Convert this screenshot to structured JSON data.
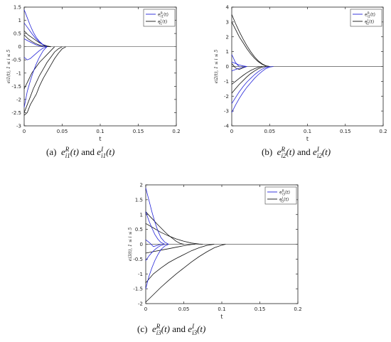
{
  "figure": {
    "captions": [
      {
        "prefix": "(a)",
        "series1": {
          "base": "e",
          "sup": "R",
          "sub": "i1",
          "arg": "(t)"
        },
        "joiner": "and",
        "series2": {
          "base": "e",
          "sup": "I",
          "sub": "i1",
          "arg": "(t)"
        }
      },
      {
        "prefix": "(b)",
        "series1": {
          "base": "e",
          "sup": "R",
          "sub": "i2",
          "arg": "(t)"
        },
        "joiner": "and",
        "series2": {
          "base": "e",
          "sup": "I",
          "sub": "i2",
          "arg": "(t)"
        }
      },
      {
        "prefix": "(c)",
        "series1": {
          "base": "e",
          "sup": "R",
          "sub": "i3",
          "arg": "(t)"
        },
        "joiner": "and",
        "series2": {
          "base": "e",
          "sup": "I",
          "sub": "i3",
          "arg": "(t)"
        }
      }
    ]
  },
  "colors": {
    "real": "#2323d8",
    "imag": "#111111",
    "axis": "#222222",
    "zero": "#555555"
  },
  "chart_data": [
    {
      "type": "line",
      "xlabel": "t",
      "ylabel": "e_{i1}(t), 1 ≤ i ≤ 5",
      "xlim": [
        0,
        0.2
      ],
      "ylim": [
        -3,
        1.5
      ],
      "xticks": [
        "0",
        "0.05",
        "0.1",
        "0.15",
        "0.2"
      ],
      "yticks": [
        "-3",
        "-2.5",
        "-2",
        "-1.5",
        "-1",
        "-0.5",
        "0",
        "0.5",
        "1",
        "1.5"
      ],
      "legend": [
        "e^R_{i1}(t)",
        "e^I_{i1}(t)"
      ],
      "legend_position": "top-right",
      "series": [
        {
          "group": "real",
          "x": [
            0,
            0.004,
            0.008,
            0.012,
            0.016,
            0.02,
            0.025,
            0.03
          ],
          "y": [
            1.4,
            1.1,
            0.8,
            0.55,
            0.35,
            0.2,
            0.07,
            0
          ]
        },
        {
          "group": "real",
          "x": [
            0,
            0.005,
            0.01,
            0.015,
            0.02,
            0.025,
            0.03
          ],
          "y": [
            0.9,
            0.7,
            0.5,
            0.32,
            0.18,
            0.06,
            0
          ]
        },
        {
          "group": "real",
          "x": [
            0,
            0.005,
            0.01,
            0.015,
            0.02,
            0.025
          ],
          "y": [
            0.3,
            0.22,
            0.15,
            0.08,
            0.03,
            0
          ]
        },
        {
          "group": "real",
          "x": [
            0,
            0.004,
            0.008,
            0.012,
            0.016,
            0.02,
            0.025,
            0.03
          ],
          "y": [
            -0.4,
            -0.5,
            -0.45,
            -0.35,
            -0.25,
            -0.15,
            -0.05,
            0
          ]
        },
        {
          "group": "real",
          "x": [
            0,
            0.004,
            0.008,
            0.012,
            0.016,
            0.02,
            0.025,
            0.03
          ],
          "y": [
            -2.3,
            -1.7,
            -1.3,
            -0.95,
            -0.65,
            -0.4,
            -0.15,
            0
          ]
        },
        {
          "group": "imag",
          "x": [
            0,
            0.005,
            0.01,
            0.015,
            0.02,
            0.025,
            0.03,
            0.035
          ],
          "y": [
            0.6,
            0.45,
            0.35,
            0.25,
            0.15,
            0.08,
            0.03,
            0
          ]
        },
        {
          "group": "imag",
          "x": [
            0,
            0.005,
            0.01,
            0.015,
            0.02,
            0.025,
            0.03,
            0.035
          ],
          "y": [
            0.45,
            0.3,
            0.2,
            0.12,
            0.06,
            0.03,
            0.01,
            0
          ]
        },
        {
          "group": "imag",
          "x": [
            0,
            0.005,
            0.01,
            0.015,
            0.02,
            0.025,
            0.03,
            0.035,
            0.04
          ],
          "y": [
            -1.6,
            -1.3,
            -1.0,
            -0.8,
            -0.6,
            -0.45,
            -0.3,
            -0.15,
            0
          ]
        },
        {
          "group": "imag",
          "x": [
            0,
            0.004,
            0.008,
            0.012,
            0.016,
            0.02,
            0.025,
            0.03,
            0.035,
            0.04,
            0.045,
            0.05
          ],
          "y": [
            -2.5,
            -2.2,
            -1.9,
            -1.6,
            -1.35,
            -1.1,
            -0.85,
            -0.6,
            -0.4,
            -0.2,
            -0.08,
            0
          ]
        },
        {
          "group": "imag",
          "x": [
            0,
            0.004,
            0.008,
            0.012,
            0.016,
            0.02,
            0.025,
            0.03,
            0.035,
            0.04,
            0.045,
            0.05,
            0.055
          ],
          "y": [
            -2.6,
            -2.5,
            -2.2,
            -2.0,
            -1.8,
            -1.5,
            -1.2,
            -0.95,
            -0.7,
            -0.45,
            -0.25,
            -0.08,
            0
          ]
        }
      ]
    },
    {
      "type": "line",
      "xlabel": "t",
      "ylabel": "e_{i2}(t), 1 ≤ i ≤ 5",
      "xlim": [
        0,
        0.2
      ],
      "ylim": [
        -4,
        4
      ],
      "xticks": [
        "0",
        "0.05",
        "0.1",
        "0.15",
        "0.2"
      ],
      "yticks": [
        "-4",
        "-3",
        "-2",
        "-1",
        "0",
        "1",
        "2",
        "3",
        "4"
      ],
      "legend": [
        "e^R_{i2}(t)",
        "e^I_{i2}(t)"
      ],
      "legend_position": "top-right",
      "series": [
        {
          "group": "real",
          "x": [
            0,
            0.002,
            0.004,
            0.006,
            0.008,
            0.01
          ],
          "y": [
            0.8,
            0.6,
            0.35,
            0.2,
            0.08,
            0
          ]
        },
        {
          "group": "real",
          "x": [
            0,
            0.005,
            0.01,
            0.015,
            0.02
          ],
          "y": [
            0.3,
            0.2,
            0.1,
            0.04,
            0
          ]
        },
        {
          "group": "real",
          "x": [
            0,
            0.005,
            0.01,
            0.015,
            0.02
          ],
          "y": [
            -0.3,
            -0.2,
            -0.12,
            -0.05,
            0
          ]
        },
        {
          "group": "real",
          "x": [
            0,
            0.005,
            0.01,
            0.015,
            0.02,
            0.025,
            0.03,
            0.035,
            0.04,
            0.045,
            0.05
          ],
          "y": [
            -2.5,
            -2.1,
            -1.7,
            -1.35,
            -1.05,
            -0.8,
            -0.55,
            -0.35,
            -0.18,
            -0.06,
            0
          ]
        },
        {
          "group": "real",
          "x": [
            0,
            0.005,
            0.01,
            0.015,
            0.02,
            0.025,
            0.03,
            0.035,
            0.04,
            0.045,
            0.05,
            0.055
          ],
          "y": [
            -3.1,
            -2.6,
            -2.15,
            -1.75,
            -1.4,
            -1.1,
            -0.8,
            -0.55,
            -0.33,
            -0.15,
            -0.04,
            0
          ]
        },
        {
          "group": "imag",
          "x": [
            0,
            0.005,
            0.01,
            0.015,
            0.02,
            0.025,
            0.03,
            0.035,
            0.04,
            0.045,
            0.05
          ],
          "y": [
            3.5,
            2.9,
            2.35,
            1.85,
            1.4,
            1.0,
            0.65,
            0.38,
            0.18,
            0.05,
            0
          ]
        },
        {
          "group": "imag",
          "x": [
            0,
            0.005,
            0.01,
            0.015,
            0.02,
            0.025,
            0.03,
            0.035,
            0.04,
            0.045,
            0.05
          ],
          "y": [
            3.0,
            2.5,
            2.0,
            1.6,
            1.2,
            0.85,
            0.55,
            0.32,
            0.15,
            0.04,
            0
          ]
        },
        {
          "group": "imag",
          "x": [
            0,
            0.005,
            0.01,
            0.015,
            0.02
          ],
          "y": [
            0.2,
            -0.1,
            -0.2,
            -0.08,
            0
          ]
        },
        {
          "group": "imag",
          "x": [
            0,
            0.005,
            0.01,
            0.015,
            0.02,
            0.025,
            0.03,
            0.035,
            0.04
          ],
          "y": [
            -1.2,
            -1.0,
            -0.8,
            -0.6,
            -0.42,
            -0.27,
            -0.15,
            -0.05,
            0
          ]
        },
        {
          "group": "imag",
          "x": [
            0,
            0.005,
            0.01,
            0.015,
            0.02,
            0.025,
            0.03,
            0.035,
            0.04,
            0.045
          ],
          "y": [
            -1.8,
            -1.5,
            -1.2,
            -0.95,
            -0.7,
            -0.48,
            -0.3,
            -0.15,
            -0.05,
            0
          ]
        }
      ]
    },
    {
      "type": "line",
      "xlabel": "t",
      "ylabel": "e_{i3}(t), 1 ≤ i ≤ 5",
      "xlim": [
        0,
        0.2
      ],
      "ylim": [
        -2,
        2
      ],
      "xticks": [
        "0",
        "0.05",
        "0.1",
        "0.15",
        "0.2"
      ],
      "yticks": [
        "-2",
        "-1.5",
        "-1",
        "-0.5",
        "0",
        "0.5",
        "1",
        "1.5",
        "2"
      ],
      "legend": [
        "e^R_{i3}(t)",
        "e^I_{i3}(t)"
      ],
      "legend_position": "top-right",
      "series": [
        {
          "group": "real",
          "x": [
            0,
            0.004,
            0.008,
            0.012,
            0.016,
            0.02,
            0.025,
            0.03
          ],
          "y": [
            1.9,
            1.5,
            1.1,
            0.75,
            0.45,
            0.22,
            0.07,
            0
          ]
        },
        {
          "group": "real",
          "x": [
            0,
            0.004,
            0.008,
            0.012,
            0.016,
            0.02,
            0.025
          ],
          "y": [
            1.1,
            0.8,
            0.55,
            0.33,
            0.17,
            0.06,
            0
          ]
        },
        {
          "group": "real",
          "x": [
            0,
            0.005,
            0.01,
            0.015,
            0.02
          ],
          "y": [
            0.15,
            0.05,
            -0.08,
            -0.04,
            0
          ]
        },
        {
          "group": "real",
          "x": [
            0,
            0.004,
            0.008,
            0.012,
            0.016,
            0.02,
            0.025
          ],
          "y": [
            -0.55,
            -0.4,
            -0.28,
            -0.18,
            -0.1,
            -0.04,
            0
          ]
        },
        {
          "group": "real",
          "x": [
            0,
            0.004,
            0.008,
            0.012,
            0.016,
            0.02,
            0.025,
            0.03
          ],
          "y": [
            -1.5,
            -1.1,
            -0.8,
            -0.55,
            -0.35,
            -0.18,
            -0.06,
            0
          ]
        },
        {
          "group": "imag",
          "x": [
            0,
            0.005,
            0.01,
            0.015,
            0.02,
            0.025,
            0.03,
            0.035,
            0.04,
            0.045,
            0.05
          ],
          "y": [
            1.1,
            0.95,
            0.82,
            0.68,
            0.55,
            0.42,
            0.3,
            0.2,
            0.1,
            0.03,
            0
          ]
        },
        {
          "group": "imag",
          "x": [
            0,
            0.01,
            0.02,
            0.03,
            0.04,
            0.05,
            0.06,
            0.07,
            0.075
          ],
          "y": [
            0.7,
            0.55,
            0.4,
            0.28,
            0.18,
            0.1,
            0.04,
            0.01,
            0
          ]
        },
        {
          "group": "imag",
          "x": [
            0,
            0.01,
            0.02,
            0.03,
            0.04,
            0.05,
            0.06,
            0.065
          ],
          "y": [
            -0.3,
            -0.25,
            -0.2,
            -0.15,
            -0.1,
            -0.05,
            -0.01,
            0
          ]
        },
        {
          "group": "imag",
          "x": [
            0,
            0.01,
            0.02,
            0.03,
            0.04,
            0.05,
            0.06,
            0.07,
            0.08,
            0.09
          ],
          "y": [
            -1.3,
            -1.0,
            -0.8,
            -0.62,
            -0.48,
            -0.35,
            -0.22,
            -0.12,
            -0.04,
            0
          ]
        },
        {
          "group": "imag",
          "x": [
            0,
            0.01,
            0.02,
            0.03,
            0.04,
            0.05,
            0.06,
            0.07,
            0.08,
            0.09,
            0.1,
            0.105
          ],
          "y": [
            -1.95,
            -1.7,
            -1.45,
            -1.22,
            -1.0,
            -0.8,
            -0.6,
            -0.42,
            -0.26,
            -0.12,
            -0.03,
            0
          ]
        }
      ]
    }
  ]
}
